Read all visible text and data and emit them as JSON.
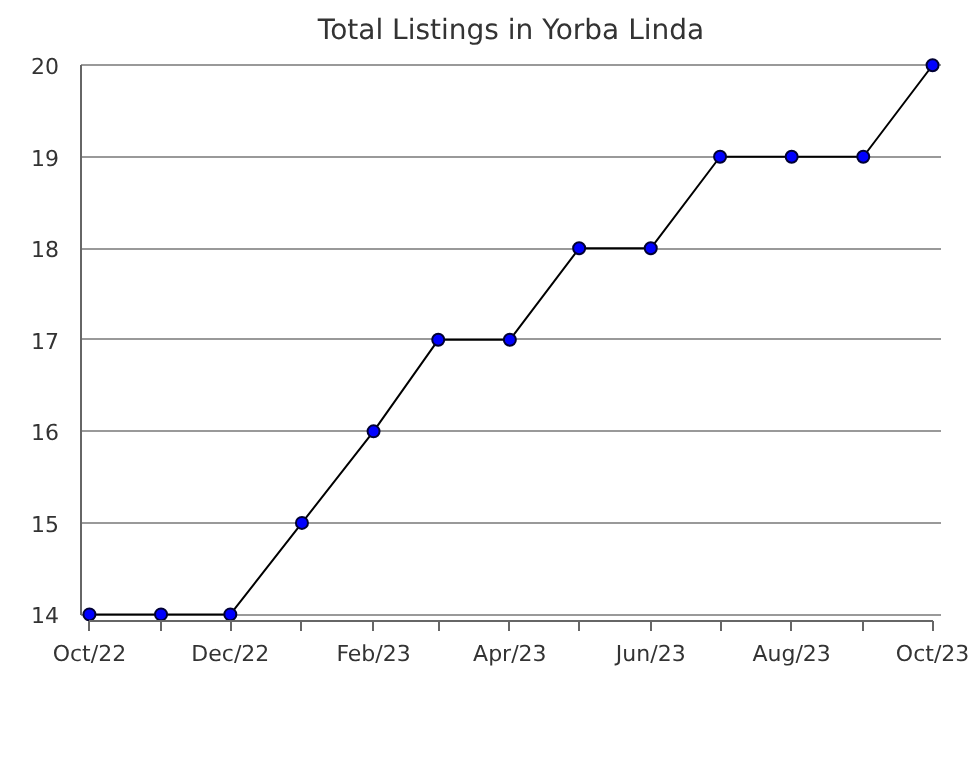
{
  "chart_data": {
    "type": "line",
    "title": "Total Listings in Yorba Linda",
    "x": [
      "2022-10",
      "2022-11",
      "2022-12",
      "2023-01",
      "2023-02",
      "2023-03",
      "2023-04",
      "2023-05",
      "2023-06",
      "2023-07",
      "2023-08",
      "2023-09",
      "2023-10"
    ],
    "series": [
      {
        "color": "#0000ff",
        "values": [
          14,
          14,
          14,
          15,
          16,
          17,
          17,
          18,
          18,
          19,
          19,
          19,
          20
        ]
      }
    ],
    "xlim": [
      "2022-10",
      "2023-10"
    ],
    "xticks": [
      {
        "value": "2022-10",
        "label": "Oct/22"
      },
      {
        "value": "2022-11",
        "label": null
      },
      {
        "value": "2022-12",
        "label": "Dec/22"
      },
      {
        "value": "2023-01",
        "label": null
      },
      {
        "value": "2023-02",
        "label": "Feb/23"
      },
      {
        "value": "2023-03",
        "label": null
      },
      {
        "value": "2023-04",
        "label": "Apr/23"
      },
      {
        "value": "2023-05",
        "label": null
      },
      {
        "value": "2023-06",
        "label": "Jun/23"
      },
      {
        "value": "2023-07",
        "label": null
      },
      {
        "value": "2023-08",
        "label": "Aug/23"
      },
      {
        "value": "2023-09",
        "label": null
      },
      {
        "value": "2023-10",
        "label": "Oct/23"
      }
    ],
    "ylim": [
      14,
      20
    ],
    "yticks": [
      14,
      15,
      16,
      17,
      18,
      19,
      20
    ],
    "grid": "y",
    "marker": "circle",
    "line_style": "solid"
  }
}
